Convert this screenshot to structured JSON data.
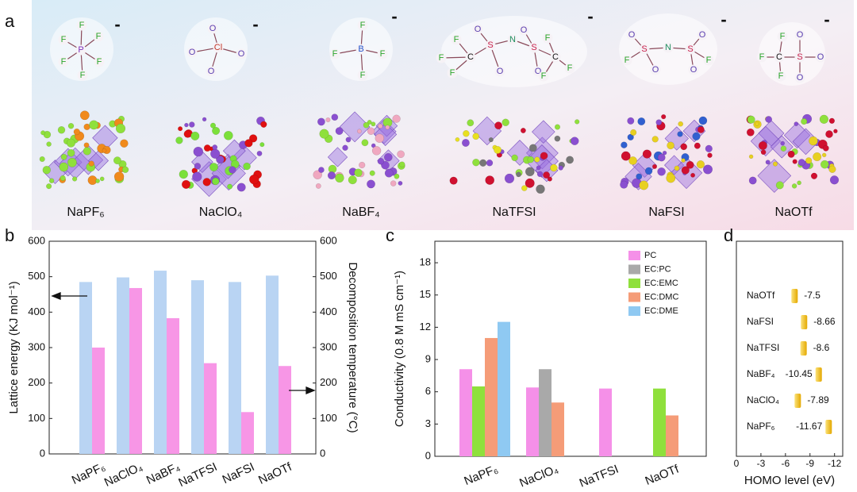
{
  "panel_labels": [
    "a",
    "b",
    "c",
    "d"
  ],
  "panel_a": {
    "molecules": [
      {
        "charge": "-",
        "atoms": [
          "F",
          "F",
          "F",
          "P",
          "F",
          "F",
          "F"
        ]
      },
      {
        "charge": "-",
        "atoms": [
          "Cl",
          "O",
          "O",
          "O",
          "O"
        ]
      },
      {
        "charge": "-",
        "atoms": [
          "B",
          "F",
          "F",
          "F",
          "F"
        ]
      },
      {
        "charge": "-",
        "atoms": [
          "F",
          "F",
          "F",
          "C",
          "S",
          "O",
          "O",
          "N",
          "S",
          "O",
          "O",
          "C",
          "F",
          "F",
          "F"
        ]
      },
      {
        "charge": "-",
        "atoms": [
          "F",
          "O",
          "S",
          "O",
          "N",
          "S",
          "O",
          "O",
          "F"
        ]
      },
      {
        "charge": "-",
        "atoms": [
          "F",
          "F",
          "F",
          "C",
          "S",
          "O",
          "O",
          "O"
        ]
      }
    ],
    "salts": [
      "NaPF₆",
      "NaClO₄",
      "NaBF₄",
      "NaTFSI",
      "NaFSI",
      "NaOTf"
    ]
  },
  "chart_data": [
    {
      "type": "bar",
      "categories": [
        "NaPF₆",
        "NaClO₄",
        "NaBF₄",
        "NaTFSI",
        "NaFSI",
        "NaOTf"
      ],
      "series": [
        {
          "color": "#b9d4f3",
          "values": [
            485,
            498,
            517,
            490,
            485,
            503
          ]
        },
        {
          "color": "#f796e6",
          "values": [
            300,
            468,
            383,
            256,
            118,
            248
          ],
          "axis": "y2"
        }
      ],
      "ylabel": "Lattice energy (KJ mol⁻¹)",
      "y2label": "Decomposition temperature (°C)",
      "ylim": [
        0,
        600
      ],
      "yticks": [
        0,
        100,
        200,
        300,
        400,
        500,
        600
      ],
      "y2lim": [
        0,
        600
      ],
      "y2ticks": [
        0,
        100,
        200,
        300,
        400,
        500,
        600
      ]
    },
    {
      "type": "bar",
      "categories": [
        "NaPF₆",
        "NaClO₄",
        "NaTFSI",
        "NaOTf"
      ],
      "series": [
        {
          "name": "PC",
          "color": "#f590e8",
          "values": [
            8.1,
            6.4,
            6.3,
            null
          ]
        },
        {
          "name": "EC:PC",
          "color": "#a9a9a9",
          "values": [
            null,
            8.1,
            null,
            null
          ]
        },
        {
          "name": "EC:EMC",
          "color": "#8fe03c",
          "values": [
            6.5,
            null,
            null,
            6.3
          ]
        },
        {
          "name": "EC:DMC",
          "color": "#f59c78",
          "values": [
            11.0,
            5.0,
            null,
            3.8
          ]
        },
        {
          "name": "EC:DME",
          "color": "#8fc9f2",
          "values": [
            12.5,
            null,
            null,
            null
          ]
        }
      ],
      "ylabel": "Conductivity (0.8 M mS cm⁻¹)",
      "ylim": [
        0,
        20
      ],
      "yticks": [
        0,
        3,
        6,
        9,
        12,
        15,
        18
      ],
      "legend": "upper-right"
    },
    {
      "type": "hbar",
      "categories": [
        "NaOTf",
        "NaFSI",
        "NaTFSI",
        "NaBF₄",
        "NaClO₄",
        "NaPF₆"
      ],
      "values": [
        -7.5,
        -8.66,
        -8.6,
        -10.45,
        -7.89,
        -11.67
      ],
      "color": "#f2c31a",
      "xlabel": "HOMO level (eV)",
      "xlim": [
        0,
        -13
      ],
      "xticks": [
        0,
        -3,
        -6,
        -9,
        -12
      ]
    }
  ]
}
